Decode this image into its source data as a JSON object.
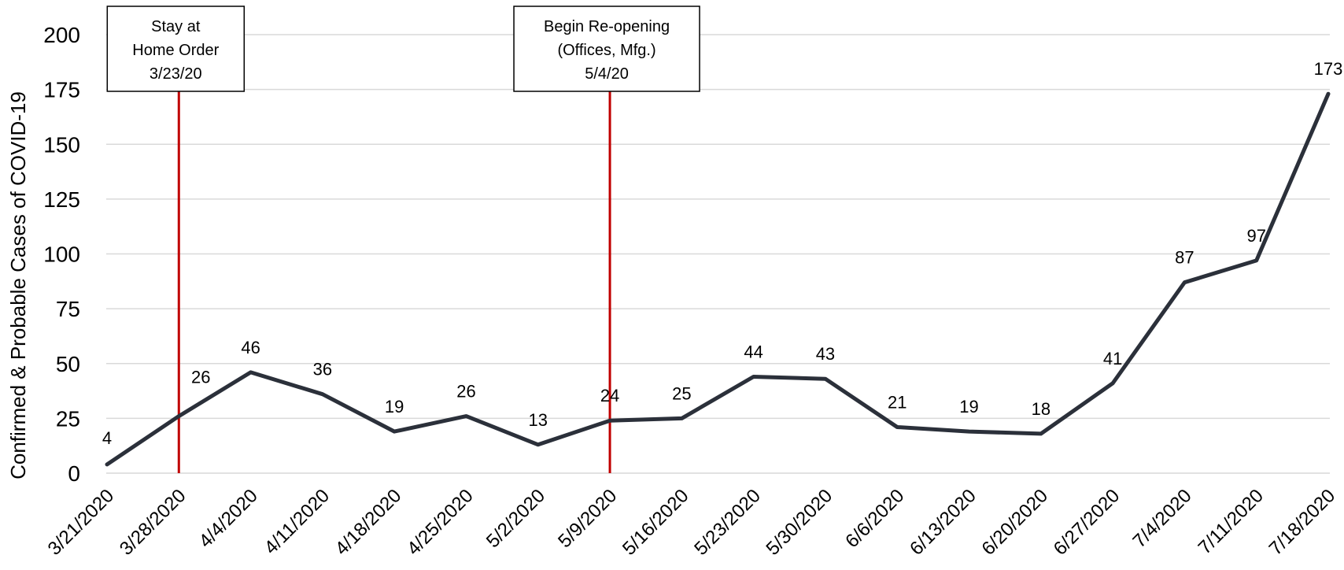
{
  "chart_data": {
    "type": "line",
    "title": "",
    "xlabel": "",
    "ylabel": "Confirmed & Probable Cases of COVID-19",
    "ylim": [
      0,
      200
    ],
    "y_ticks": [
      0,
      25,
      50,
      75,
      100,
      125,
      150,
      175,
      200
    ],
    "grid": true,
    "legend": "none",
    "categories": [
      "3/21/2020",
      "3/28/2020",
      "4/4/2020",
      "4/11/2020",
      "4/18/2020",
      "4/25/2020",
      "5/2/2020",
      "5/9/2020",
      "5/16/2020",
      "5/23/2020",
      "5/30/2020",
      "6/6/2020",
      "6/13/2020",
      "6/20/2020",
      "6/27/2020",
      "7/4/2020",
      "7/11/2020",
      "7/18/2020"
    ],
    "series": [
      {
        "values": [
          4,
          26,
          46,
          36,
          19,
          26,
          13,
          24,
          25,
          44,
          43,
          21,
          19,
          18,
          41,
          87,
          97,
          173
        ],
        "color": "#2b303a"
      }
    ],
    "annotations": [
      {
        "lines": [
          "Stay at",
          "Home Order",
          "3/23/20"
        ],
        "at_category": "3/28/2020",
        "color": "#c00000"
      },
      {
        "lines": [
          "Begin Re-opening",
          "(Offices, Mfg.)",
          "5/4/20"
        ],
        "at_category": "5/9/2020",
        "color": "#c00000"
      }
    ],
    "colors": {
      "grid": "#d9d9d9",
      "line": "#2b303a",
      "marker_line": "#c00000"
    }
  }
}
